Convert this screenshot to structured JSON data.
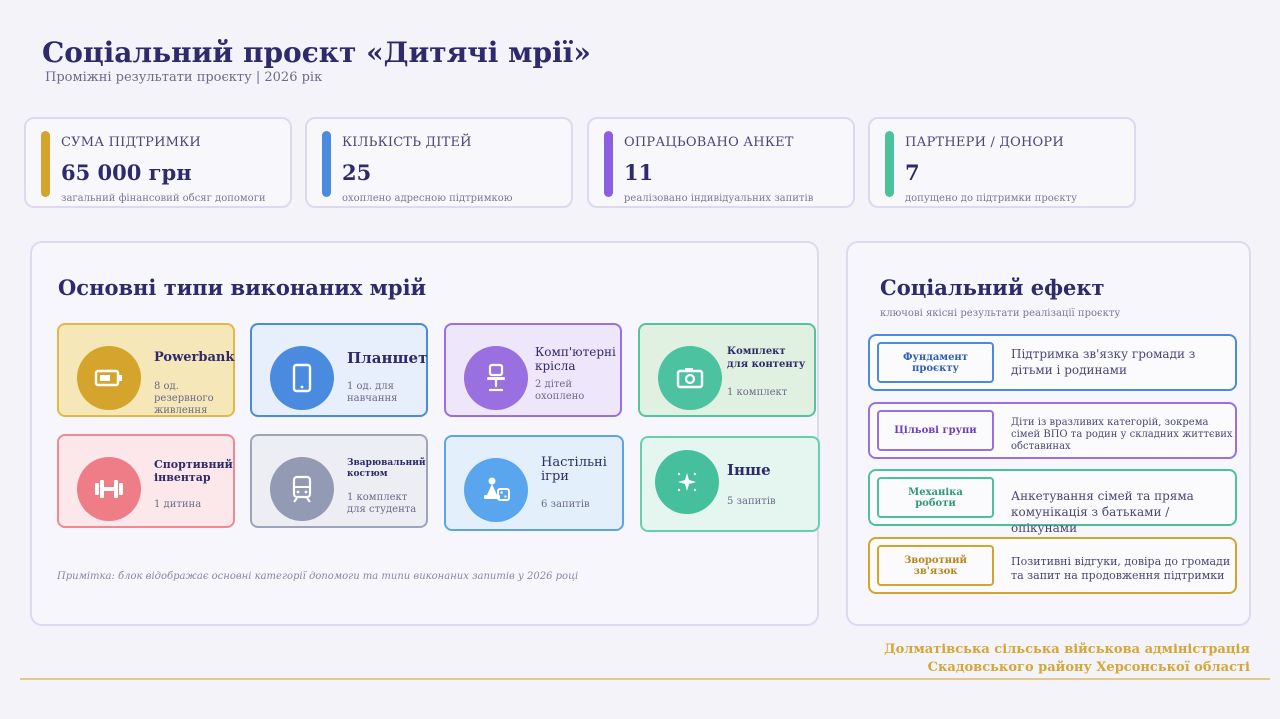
{
  "header": {
    "title": "Соціальний проєкт «Дитячі мрії»",
    "subtitle": "Проміжні результати проєкту | 2026 рік"
  },
  "stats": [
    {
      "label": "СУМА ПІДТРИМКИ",
      "value": "65 000 грн",
      "desc": "загальний фінансовий обсяг допомоги",
      "color": "#d4a42c"
    },
    {
      "label": "КІЛЬКІСТЬ ДІТЕЙ",
      "value": "25",
      "desc": "охоплено адресною підтримкою",
      "color": "#4a8be0"
    },
    {
      "label": "ОПРАЦЬОВАНО АНКЕТ",
      "value": "11",
      "desc": "реалізовано індивідуальних запитів",
      "color": "#8b5fe0"
    },
    {
      "label": "ПАРТНЕРИ / ДОНОРИ",
      "value": "7",
      "desc": "допущено до підтримки проєкту",
      "color": "#4cc29a"
    }
  ],
  "dreams": {
    "title": "Основні типи виконаних мрій",
    "note": "Примітка: блок відображає основні категорії допомоги та типи виконаних запитів у 2026 році",
    "cards": [
      {
        "title": "Powerbank",
        "desc": "8 од. резервного живлення",
        "icon": "battery-icon",
        "bg": "#f5e7b8",
        "border": "#e0b948",
        "circle": "#d4a42c"
      },
      {
        "title": "Планшет",
        "desc": "1 од. для навчання",
        "icon": "tablet-icon",
        "bg": "#e6effb",
        "border": "#4a8be0",
        "circle": "#4a8be0"
      },
      {
        "title": "Комп'ютерні крісла",
        "desc": "2 дітей охоплено",
        "icon": "chair-icon",
        "bg": "#eee6fb",
        "border": "#9a6fe0",
        "circle": "#9a6fe0"
      },
      {
        "title": "Комплект для контенту",
        "desc": "1 комплект",
        "icon": "camera-icon",
        "bg": "#e0f1e2",
        "border": "#58c29a",
        "circle": "#4cc2a0"
      },
      {
        "title": "Спортивний інвентар",
        "desc": "1 дитина",
        "icon": "dumbbell-icon",
        "bg": "#fce8ea",
        "border": "#ee8a94",
        "circle": "#ee7d88"
      },
      {
        "title": "Зварювальний костюм",
        "desc": "1 комплект для студента",
        "icon": "train-icon",
        "bg": "#eceef4",
        "border": "#9ea4bb",
        "circle": "#939ab4"
      },
      {
        "title": "Настільні ігри",
        "desc": "6 запитів",
        "icon": "game-icon",
        "bg": "#e3f0fb",
        "border": "#5ea3e6",
        "circle": "#5aa6ee"
      },
      {
        "title": "Інше",
        "desc": "5 запитів",
        "icon": "sparkle-icon",
        "bg": "#e4f6ef",
        "border": "#66d0ac",
        "circle": "#46c09c"
      }
    ]
  },
  "effect": {
    "title": "Соціальний ефект",
    "subtitle": "ключові якісні результати реалізації проєкту",
    "items": [
      {
        "tag": "Фундамент проєкту",
        "text": "Підтримка зв'язку громади з дітьми і родинами",
        "color": "#4a8be0"
      },
      {
        "tag": "Цільові групи",
        "text": "Діти із вразливих категорій, зокрема сімей ВПО та родин у складних життєвих обставинах",
        "color": "#9a6fe0"
      },
      {
        "tag": "Механіка роботи",
        "text": "Анкетування сімей та пряма комунікація з батьками / опікунами",
        "color": "#4cc29a"
      },
      {
        "tag": "Зворотний зв'язок",
        "text": "Позитивні відгуки, довіра до громади та запит на продовження підтримки",
        "color": "#d4a42c"
      }
    ]
  },
  "footer": {
    "line1": "Долматівська сільська військова адміністрація",
    "line2": "Скадовського району Херсонської області"
  }
}
